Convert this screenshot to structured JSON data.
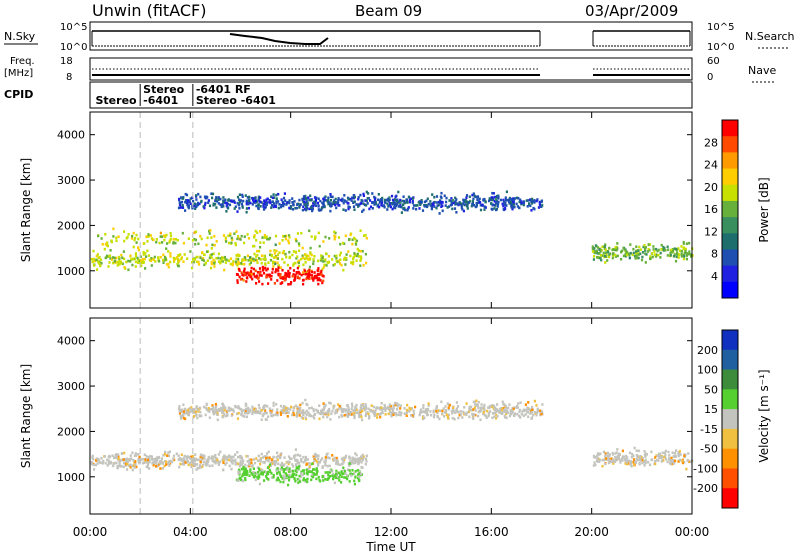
{
  "header": {
    "title": "Unwin (fitACF)",
    "beam": "Beam 09",
    "date": "03/Apr/2009"
  },
  "panels": {
    "nsky": {
      "label": "N.Sky",
      "ticks_left": [
        "10^5",
        "10^0"
      ],
      "ticks_right": [
        "10^5",
        "10^0"
      ],
      "right_label": "N.Search"
    },
    "freq": {
      "label_line1": "Freq.",
      "label_line2": "[MHz]",
      "ticks_left": [
        "18",
        "8"
      ],
      "ticks_right": [
        "60",
        "0"
      ],
      "right_label": "Nave"
    },
    "cpid": {
      "label": "CPID",
      "entries": [
        {
          "label": "Stereo",
          "hour": 0.1,
          "row": 1
        },
        {
          "label": "Stereo",
          "hour": 2.0,
          "row": 0
        },
        {
          "label": "-6401",
          "hour": 2.0,
          "row": 1
        },
        {
          "label": "-6401  RF",
          "hour": 4.1,
          "row": 0
        },
        {
          "label": "Stereo  -6401",
          "hour": 4.1,
          "row": 1
        }
      ]
    }
  },
  "colorbars": {
    "power": {
      "label": "Power [dB]",
      "ticks": [
        "28",
        "24",
        "20",
        "16",
        "12",
        "8",
        "4"
      ],
      "colors": [
        "#ff0000",
        "#ff4a00",
        "#ff9a00",
        "#ffcd00",
        "#c8e000",
        "#67b03c",
        "#3a8f5e",
        "#1f6e6e",
        "#1f4fb0",
        "#2020e0",
        "#0000ff"
      ]
    },
    "velocity": {
      "label": "Velocity [m s⁻¹]",
      "ticks": [
        "200",
        "100",
        "50",
        "15",
        "-15",
        "-50",
        "-100",
        "-200"
      ],
      "colors": [
        "#1030c0",
        "#2060a0",
        "#3c8c3c",
        "#55d030",
        "#c4c4be",
        "#f0c040",
        "#ff9000",
        "#ff5000",
        "#ff0000"
      ]
    }
  },
  "axes": {
    "x_ticks": [
      "00:00",
      "04:00",
      "08:00",
      "12:00",
      "16:00",
      "20:00",
      "00:00"
    ],
    "x_label": "Time UT",
    "y_ticks": [
      "1000",
      "2000",
      "3000",
      "4000"
    ],
    "y_label": "Slant Range [km]"
  },
  "chart_data": [
    {
      "type": "heatmap",
      "title": "",
      "xlabel": "Time UT",
      "ylabel": "Slant Range [km]",
      "colorbar_label": "Power [dB]",
      "xlim": [
        0,
        24
      ],
      "ylim": [
        180,
        4500
      ],
      "data_gap_hours": [
        18.0,
        19.9
      ],
      "regions": [
        {
          "name": "",
          "t_start": 0.0,
          "t_end": 11.0,
          "range_center_km": [
            1200,
            1300,
            1700
          ],
          "intensity_db": 16
        },
        {
          "name": "",
          "t_start": 5.8,
          "t_end": 9.3,
          "range_center_km": 900,
          "intensity_db": 28
        },
        {
          "name": "",
          "t_start": 3.5,
          "t_end": 18.0,
          "range_center_km": 2500,
          "intensity_db": 6
        },
        {
          "name": "",
          "t_start": 20.0,
          "t_end": 24.0,
          "range_center_km": 1400,
          "intensity_db": 14
        }
      ]
    },
    {
      "type": "heatmap",
      "title": "",
      "xlabel": "Time UT",
      "ylabel": "Slant Range [km]",
      "colorbar_label": "Velocity [m s⁻¹]",
      "xlim": [
        0,
        24
      ],
      "ylim": [
        180,
        4500
      ],
      "data_gap_hours": [
        18.0,
        19.9
      ],
      "regions": [
        {
          "name": "",
          "t_start": 0.0,
          "t_end": 11.0,
          "range_center_km": 1350,
          "velocity": 0
        },
        {
          "name": "",
          "t_start": 5.8,
          "t_end": 10.8,
          "range_center_km": 1050,
          "velocity": 50
        },
        {
          "name": "",
          "t_start": 3.5,
          "t_end": 18.0,
          "range_center_km": 2450,
          "velocity": 0
        },
        {
          "name": "",
          "t_start": 20.0,
          "t_end": 24.0,
          "range_center_km": 1400,
          "velocity": 0
        }
      ]
    }
  ]
}
